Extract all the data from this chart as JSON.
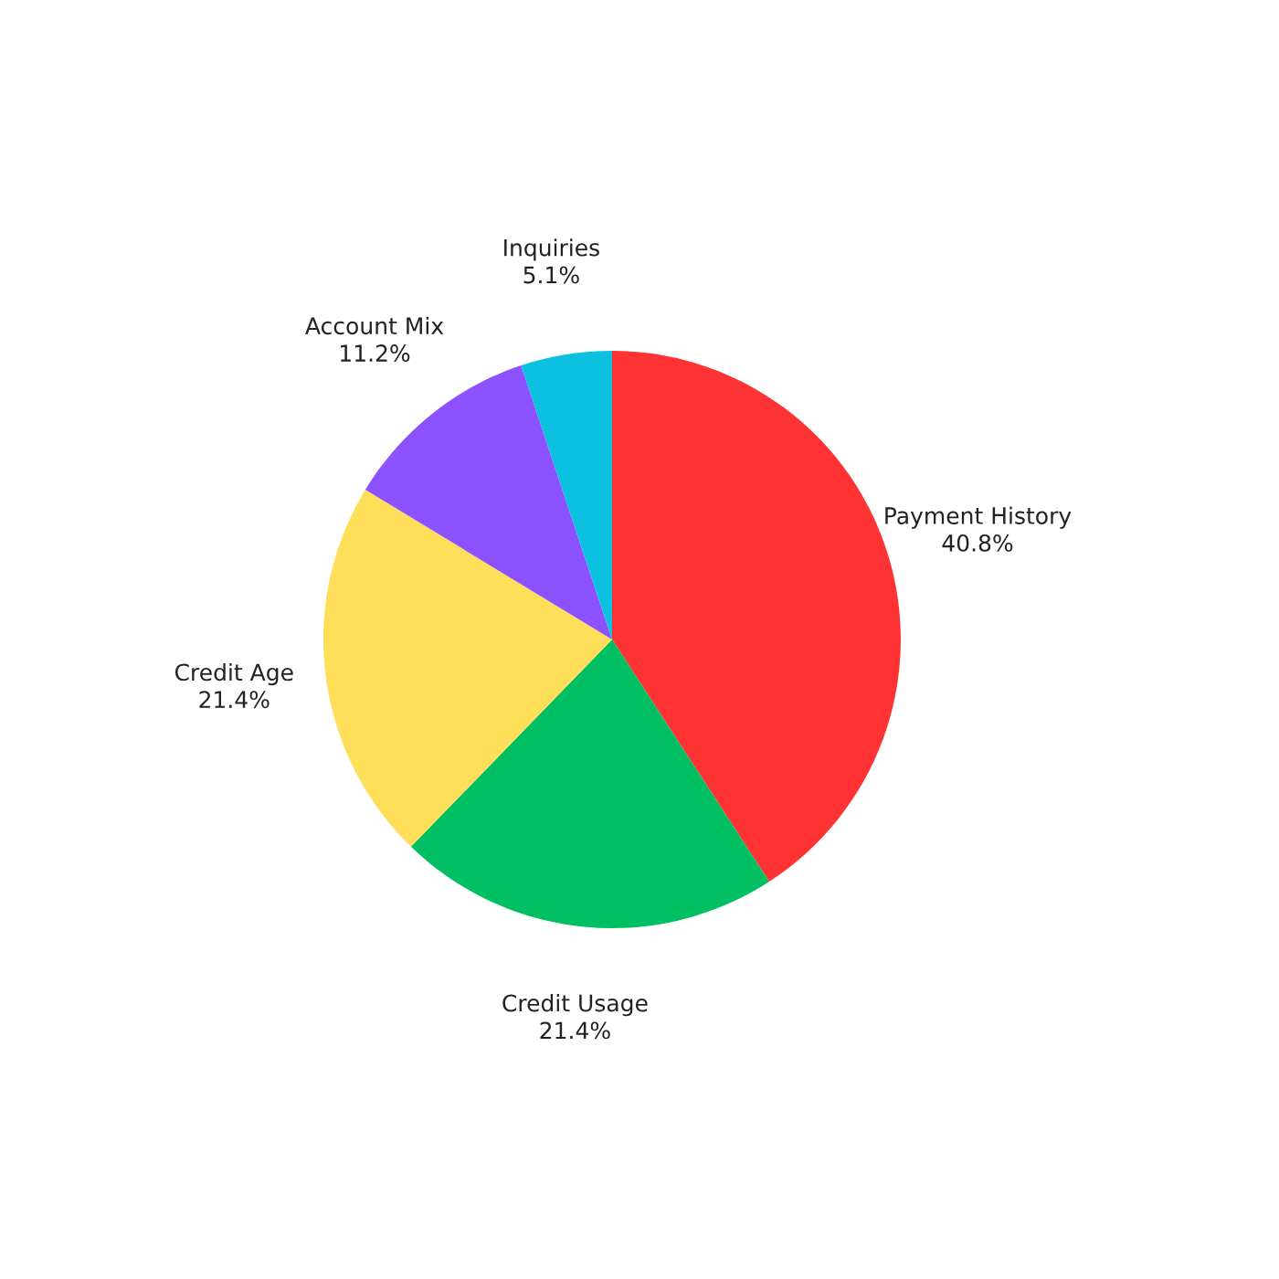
{
  "chart_data": {
    "type": "pie",
    "categories": [
      "Payment History",
      "Credit Usage",
      "Credit Age",
      "Account Mix",
      "Inquiries"
    ],
    "values": [
      40.8,
      21.4,
      21.4,
      11.2,
      5.1
    ],
    "value_labels": [
      "40.8%",
      "21.4%",
      "21.4%",
      "11.2%",
      "5.1%"
    ],
    "colors": [
      "#ff3333",
      "#00bf63",
      "#ffde59",
      "#8c52ff",
      "#0cc0df"
    ],
    "legend": false
  }
}
